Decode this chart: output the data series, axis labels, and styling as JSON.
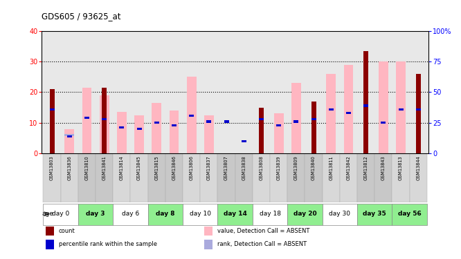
{
  "title": "GDS605 / 93625_at",
  "samples": [
    "GSM13803",
    "GSM13836",
    "GSM13810",
    "GSM13841",
    "GSM13814",
    "GSM13845",
    "GSM13815",
    "GSM13846",
    "GSM13806",
    "GSM13837",
    "GSM13807",
    "GSM13838",
    "GSM13808",
    "GSM13839",
    "GSM13809",
    "GSM13840",
    "GSM13811",
    "GSM13842",
    "GSM13812",
    "GSM13843",
    "GSM13813",
    "GSM13844"
  ],
  "day_groups": [
    {
      "label": "day 0",
      "indices": [
        0,
        1
      ],
      "color": "#ffffff"
    },
    {
      "label": "day 3",
      "indices": [
        2,
        3
      ],
      "color": "#90EE90"
    },
    {
      "label": "day 6",
      "indices": [
        4,
        5
      ],
      "color": "#ffffff"
    },
    {
      "label": "day 8",
      "indices": [
        6,
        7
      ],
      "color": "#90EE90"
    },
    {
      "label": "day 10",
      "indices": [
        8,
        9
      ],
      "color": "#ffffff"
    },
    {
      "label": "day 14",
      "indices": [
        10,
        11
      ],
      "color": "#90EE90"
    },
    {
      "label": "day 18",
      "indices": [
        12,
        13
      ],
      "color": "#ffffff"
    },
    {
      "label": "day 20",
      "indices": [
        14,
        15
      ],
      "color": "#90EE90"
    },
    {
      "label": "day 30",
      "indices": [
        16,
        17
      ],
      "color": "#ffffff"
    },
    {
      "label": "day 35",
      "indices": [
        18,
        19
      ],
      "color": "#90EE90"
    },
    {
      "label": "day 56",
      "indices": [
        20,
        21
      ],
      "color": "#90EE90"
    }
  ],
  "count_values": [
    21,
    0,
    0,
    21.5,
    0,
    0,
    0,
    0,
    0,
    0,
    0,
    0,
    15,
    0,
    0,
    17,
    0,
    0,
    33.5,
    0,
    0,
    26
  ],
  "rank_values_pct": [
    36,
    14,
    29,
    28,
    21,
    20,
    25,
    23,
    31,
    26,
    26,
    10,
    28,
    23,
    26,
    28,
    36,
    33,
    39,
    25,
    36,
    36
  ],
  "absent_value_values": [
    0,
    8,
    21.5,
    19,
    13.5,
    12.5,
    16.5,
    14,
    25,
    12.5,
    0,
    0,
    0,
    13,
    23,
    0,
    26,
    29,
    0,
    30,
    30,
    0
  ],
  "absent_rank_pct": [
    0,
    15,
    0,
    0,
    0,
    0,
    0,
    0,
    0,
    0,
    0,
    0,
    0,
    0,
    0,
    0,
    0,
    0,
    0,
    0,
    0,
    0
  ],
  "ylim_left": [
    0,
    40
  ],
  "ylim_right": [
    0,
    100
  ],
  "yticks_left": [
    0,
    10,
    20,
    30,
    40
  ],
  "yticks_right": [
    0,
    25,
    50,
    75,
    100
  ],
  "count_color": "#8B0000",
  "rank_color": "#0000CD",
  "absent_value_color": "#FFB6C1",
  "absent_rank_color": "#AAAADD",
  "bg_color": "#e8e8e8",
  "legend_items": [
    {
      "color": "#8B0000",
      "label": "count"
    },
    {
      "color": "#0000CD",
      "label": "percentile rank within the sample"
    },
    {
      "color": "#FFB6C1",
      "label": "value, Detection Call = ABSENT"
    },
    {
      "color": "#AAAADD",
      "label": "rank, Detection Call = ABSENT"
    }
  ]
}
